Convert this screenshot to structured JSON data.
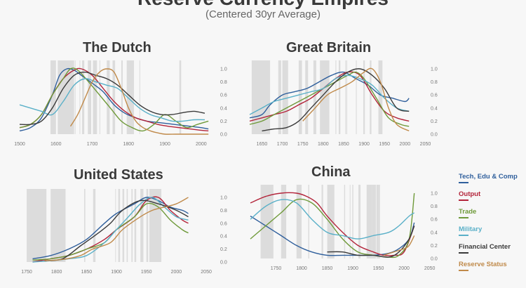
{
  "title": "Reserve Currency Empires",
  "subtitle": "(Centered 30yr Average)",
  "legend": [
    {
      "label": "Tech, Edu & Comp",
      "color": "#2f5f9c"
    },
    {
      "label": "Output",
      "color": "#b3243a"
    },
    {
      "label": "Trade",
      "color": "#6f9a3a"
    },
    {
      "label": "Military",
      "color": "#5ab0c8"
    },
    {
      "label": "Financial Center",
      "color": "#3a3a3a"
    },
    {
      "label": "Reserve Status",
      "color": "#c08a4a"
    }
  ],
  "chart_data": [
    {
      "type": "line",
      "title": "The Dutch",
      "xlim": [
        1500,
        2010
      ],
      "ylim": [
        0,
        1
      ],
      "x_ticks": [
        1500,
        1600,
        1700,
        1800,
        1900,
        2000
      ],
      "y_ticks": [
        0.0,
        0.2,
        0.4,
        0.6,
        0.8,
        1.0
      ],
      "grid": false,
      "war_bands": [
        [
          1585,
          1600
        ],
        [
          1605,
          1650
        ],
        [
          1652,
          1654
        ],
        [
          1665,
          1667
        ],
        [
          1672,
          1678
        ],
        [
          1688,
          1697
        ],
        [
          1702,
          1713
        ],
        [
          1720,
          1722
        ],
        [
          1740,
          1748
        ],
        [
          1756,
          1763
        ],
        [
          1780,
          1784
        ],
        [
          1795,
          1815
        ],
        [
          1830,
          1832
        ],
        [
          1940,
          1945
        ]
      ],
      "series": [
        {
          "legend": 0,
          "x": [
            1500,
            1530,
            1560,
            1590,
            1610,
            1630,
            1650,
            1670,
            1700,
            1730,
            1760,
            1790,
            1820,
            1850,
            1880,
            1910,
            1940,
            1970,
            2000,
            2020
          ],
          "y": [
            0.05,
            0.1,
            0.25,
            0.6,
            0.9,
            1.0,
            0.98,
            0.9,
            0.78,
            0.65,
            0.45,
            0.32,
            0.25,
            0.2,
            0.18,
            0.16,
            0.14,
            0.12,
            0.1,
            0.08
          ]
        },
        {
          "legend": 1,
          "x": [
            1500,
            1530,
            1560,
            1590,
            1620,
            1650,
            1670,
            1700,
            1730,
            1760,
            1790,
            1820,
            1850,
            1880,
            1910,
            1940,
            1970,
            2000,
            2020
          ],
          "y": [
            0.1,
            0.15,
            0.3,
            0.6,
            0.85,
            0.98,
            1.0,
            0.9,
            0.7,
            0.5,
            0.35,
            0.25,
            0.2,
            0.15,
            0.12,
            0.1,
            0.08,
            0.06,
            0.05
          ]
        },
        {
          "legend": 2,
          "x": [
            1500,
            1530,
            1560,
            1590,
            1620,
            1640,
            1660,
            1690,
            1720,
            1750,
            1780,
            1810,
            1840,
            1870,
            1900,
            1930,
            1960,
            1990,
            2020
          ],
          "y": [
            0.1,
            0.15,
            0.3,
            0.6,
            0.85,
            1.0,
            0.98,
            0.8,
            0.6,
            0.4,
            0.2,
            0.1,
            0.05,
            0.15,
            0.3,
            0.2,
            0.1,
            0.15,
            0.2
          ]
        },
        {
          "legend": 3,
          "x": [
            1500,
            1530,
            1560,
            1590,
            1620,
            1650,
            1680,
            1710,
            1740,
            1770,
            1800,
            1830,
            1860,
            1890,
            1920,
            1950,
            1980,
            2010
          ],
          "y": [
            0.45,
            0.4,
            0.35,
            0.3,
            0.5,
            0.75,
            0.85,
            0.8,
            0.75,
            0.7,
            0.55,
            0.4,
            0.3,
            0.25,
            0.2,
            0.2,
            0.22,
            0.22
          ]
        },
        {
          "legend": 4,
          "x": [
            1500,
            1530,
            1560,
            1590,
            1620,
            1650,
            1680,
            1710,
            1740,
            1770,
            1800,
            1830,
            1860,
            1890,
            1920,
            1950,
            1980,
            2010
          ],
          "y": [
            0.15,
            0.15,
            0.2,
            0.4,
            0.7,
            0.9,
            0.95,
            0.9,
            0.85,
            0.75,
            0.6,
            0.45,
            0.35,
            0.3,
            0.3,
            0.33,
            0.35,
            0.32
          ]
        },
        {
          "legend": 5,
          "x": [
            1640,
            1660,
            1680,
            1700,
            1720,
            1740,
            1760,
            1780,
            1800,
            1820,
            1840,
            1860,
            1880,
            1900,
            1930,
            1960,
            1990,
            2020
          ],
          "y": [
            0.12,
            0.3,
            0.55,
            0.8,
            0.95,
            1.0,
            0.95,
            0.7,
            0.4,
            0.2,
            0.1,
            0.05,
            0.02,
            0.0,
            0.0,
            0.0,
            0.0,
            0.0
          ]
        }
      ]
    },
    {
      "type": "line",
      "title": "Great Britain",
      "xlim": [
        1620,
        2020
      ],
      "ylim": [
        0,
        1
      ],
      "x_ticks": [
        1650,
        1700,
        1750,
        1800,
        1850,
        1900,
        1950,
        2000,
        2050
      ],
      "y_ticks": [
        0.0,
        0.2,
        0.4,
        0.6,
        0.8,
        1.0
      ],
      "grid": false,
      "war_bands": [
        [
          1625,
          1670
        ],
        [
          1690,
          1697
        ],
        [
          1700,
          1714
        ],
        [
          1740,
          1748
        ],
        [
          1756,
          1763
        ],
        [
          1776,
          1783
        ],
        [
          1792,
          1815
        ],
        [
          1830,
          1832
        ],
        [
          1838,
          1842
        ],
        [
          1854,
          1856
        ],
        [
          1857,
          1858
        ],
        [
          1880,
          1882
        ],
        [
          1898,
          1902
        ],
        [
          1914,
          1918
        ],
        [
          1935,
          1945
        ]
      ],
      "series": [
        {
          "legend": 0,
          "x": [
            1620,
            1650,
            1670,
            1700,
            1730,
            1760,
            1790,
            1820,
            1850,
            1880,
            1910,
            1940,
            1970,
            2000,
            2010
          ],
          "y": [
            0.25,
            0.3,
            0.45,
            0.6,
            0.65,
            0.7,
            0.8,
            0.9,
            0.95,
            0.85,
            0.75,
            0.6,
            0.55,
            0.5,
            0.55
          ]
        },
        {
          "legend": 1,
          "x": [
            1620,
            1650,
            1680,
            1710,
            1740,
            1770,
            1800,
            1830,
            1860,
            1890,
            1920,
            1950,
            1980,
            2010
          ],
          "y": [
            0.2,
            0.25,
            0.3,
            0.35,
            0.45,
            0.55,
            0.7,
            0.85,
            0.95,
            0.9,
            0.6,
            0.35,
            0.25,
            0.2
          ]
        },
        {
          "legend": 2,
          "x": [
            1620,
            1650,
            1680,
            1710,
            1740,
            1770,
            1800,
            1830,
            1860,
            1880,
            1900,
            1930,
            1960,
            1990,
            2010
          ],
          "y": [
            0.15,
            0.2,
            0.3,
            0.4,
            0.5,
            0.6,
            0.7,
            0.8,
            0.9,
            0.95,
            0.85,
            0.55,
            0.25,
            0.15,
            0.12
          ]
        },
        {
          "legend": 3,
          "x": [
            1620,
            1650,
            1680,
            1710,
            1740,
            1770,
            1800,
            1830,
            1860,
            1890,
            1920,
            1950,
            1980,
            2010
          ],
          "y": [
            0.3,
            0.4,
            0.5,
            0.55,
            0.6,
            0.65,
            0.7,
            0.85,
            0.9,
            0.85,
            0.75,
            0.55,
            0.4,
            0.35
          ]
        },
        {
          "legend": 4,
          "x": [
            1650,
            1680,
            1710,
            1740,
            1770,
            1800,
            1830,
            1860,
            1890,
            1920,
            1950,
            1980,
            2010
          ],
          "y": [
            0.05,
            0.08,
            0.1,
            0.2,
            0.4,
            0.6,
            0.8,
            0.95,
            1.0,
            0.9,
            0.7,
            0.4,
            0.35
          ]
        },
        {
          "legend": 5,
          "x": [
            1750,
            1780,
            1810,
            1840,
            1870,
            1900,
            1920,
            1940,
            1960,
            1980,
            2010
          ],
          "y": [
            0.2,
            0.4,
            0.6,
            0.7,
            0.8,
            0.95,
            1.0,
            0.8,
            0.4,
            0.15,
            0.05
          ]
        }
      ]
    },
    {
      "type": "line",
      "title": "United States",
      "xlim": [
        1750,
        2030
      ],
      "ylim": [
        0,
        1
      ],
      "x_ticks": [
        1750,
        1800,
        1850,
        1900,
        1950,
        2000,
        2050
      ],
      "y_ticks": [
        0.0,
        0.2,
        0.4,
        0.6,
        0.8,
        1.0
      ],
      "grid": false,
      "war_bands": [
        [
          1750,
          1783
        ],
        [
          1790,
          1815
        ],
        [
          1846,
          1848
        ],
        [
          1861,
          1865
        ],
        [
          1898,
          1899
        ],
        [
          1903,
          1906
        ],
        [
          1910,
          1913
        ],
        [
          1917,
          1919
        ],
        [
          1925,
          1927
        ],
        [
          1930,
          1933
        ],
        [
          1940,
          1945
        ],
        [
          1950,
          1953
        ],
        [
          1955,
          1975
        ]
      ],
      "series": [
        {
          "legend": 0,
          "x": [
            1760,
            1790,
            1820,
            1850,
            1880,
            1900,
            1930,
            1950,
            1970,
            1990,
            2010,
            2020
          ],
          "y": [
            0.05,
            0.1,
            0.2,
            0.35,
            0.6,
            0.75,
            0.9,
            1.0,
            0.95,
            0.85,
            0.8,
            0.75
          ]
        },
        {
          "legend": 1,
          "x": [
            1760,
            1790,
            1820,
            1850,
            1880,
            1900,
            1930,
            1950,
            1970,
            1990,
            2010,
            2020
          ],
          "y": [
            0.0,
            0.05,
            0.1,
            0.2,
            0.35,
            0.5,
            0.7,
            0.95,
            1.0,
            0.8,
            0.65,
            0.6
          ]
        },
        {
          "legend": 2,
          "x": [
            1760,
            1790,
            1820,
            1850,
            1880,
            1900,
            1930,
            1950,
            1970,
            1990,
            2010,
            2020
          ],
          "y": [
            0.03,
            0.05,
            0.1,
            0.2,
            0.3,
            0.5,
            0.7,
            0.9,
            0.85,
            0.65,
            0.5,
            0.45
          ]
        },
        {
          "legend": 3,
          "x": [
            1760,
            1790,
            1820,
            1850,
            1880,
            1900,
            1920,
            1940,
            1960,
            1980,
            2000,
            2020
          ],
          "y": [
            0.0,
            0.02,
            0.05,
            0.1,
            0.3,
            0.5,
            0.7,
            0.9,
            1.0,
            0.85,
            0.7,
            0.65
          ]
        },
        {
          "legend": 4,
          "x": [
            1780,
            1810,
            1840,
            1870,
            1890,
            1910,
            1940,
            1970,
            2000,
            2020
          ],
          "y": [
            0.02,
            0.05,
            0.25,
            0.45,
            0.6,
            0.8,
            0.95,
            0.9,
            0.8,
            0.7
          ]
        },
        {
          "legend": 5,
          "x": [
            1780,
            1810,
            1840,
            1860,
            1890,
            1910,
            1940,
            1960,
            1980,
            2000,
            2020
          ],
          "y": [
            0.02,
            0.04,
            0.1,
            0.2,
            0.3,
            0.5,
            0.7,
            0.8,
            0.85,
            0.9,
            1.0
          ]
        }
      ]
    },
    {
      "type": "line",
      "title": "China",
      "xlim": [
        1700,
        2030
      ],
      "ylim": [
        0,
        1
      ],
      "x_ticks": [
        1750,
        1800,
        1850,
        1900,
        1950,
        2000,
        2050
      ],
      "y_ticks": [
        0.0,
        0.2,
        0.4,
        0.6,
        0.8,
        1.0
      ],
      "grid": false,
      "war_bands": [
        [
          1720,
          1745
        ],
        [
          1760,
          1770
        ],
        [
          1790,
          1800
        ],
        [
          1813,
          1815
        ],
        [
          1839,
          1842
        ],
        [
          1850,
          1864
        ],
        [
          1883,
          1885
        ],
        [
          1894,
          1895
        ],
        [
          1899,
          1901
        ],
        [
          1911,
          1915
        ],
        [
          1927,
          1937
        ],
        [
          1937,
          1945
        ],
        [
          1946,
          1950
        ],
        [
          1950,
          1953
        ]
      ],
      "series": [
        {
          "legend": 0,
          "x": [
            1700,
            1730,
            1760,
            1790,
            1820,
            1850,
            1880,
            1910,
            1940,
            1970,
            1990,
            2010,
            2020
          ],
          "y": [
            0.65,
            0.5,
            0.35,
            0.2,
            0.1,
            0.05,
            0.05,
            0.05,
            0.05,
            0.08,
            0.15,
            0.3,
            0.55
          ]
        },
        {
          "legend": 1,
          "x": [
            1700,
            1730,
            1760,
            1790,
            1810,
            1830,
            1850,
            1880,
            1910,
            1940,
            1960,
            1980,
            2000,
            2020
          ],
          "y": [
            0.85,
            0.95,
            1.0,
            1.0,
            0.95,
            0.85,
            0.65,
            0.4,
            0.2,
            0.1,
            0.05,
            0.05,
            0.1,
            0.5
          ]
        },
        {
          "legend": 2,
          "x": [
            1700,
            1730,
            1760,
            1790,
            1820,
            1850,
            1880,
            1910,
            1940,
            1970,
            1990,
            2010,
            2020
          ],
          "y": [
            0.3,
            0.5,
            0.7,
            0.9,
            0.85,
            0.6,
            0.3,
            0.1,
            0.05,
            0.02,
            0.05,
            0.3,
            1.0
          ]
        },
        {
          "legend": 3,
          "x": [
            1700,
            1730,
            1760,
            1790,
            1820,
            1850,
            1880,
            1910,
            1940,
            1970,
            1990,
            2010,
            2020
          ],
          "y": [
            0.6,
            0.8,
            0.9,
            0.85,
            0.6,
            0.4,
            0.35,
            0.3,
            0.35,
            0.4,
            0.5,
            0.65,
            0.7
          ]
        },
        {
          "legend": 4,
          "x": [
            1850,
            1880,
            1910,
            1940,
            1970,
            1990,
            2010,
            2020
          ],
          "y": [
            0.1,
            0.1,
            0.05,
            0.05,
            0.02,
            0.1,
            0.3,
            0.5
          ]
        },
        {
          "legend": 5,
          "x": [
            1960,
            1980,
            2000,
            2010,
            2020
          ],
          "y": [
            0.05,
            0.1,
            0.15,
            0.2,
            0.35
          ]
        }
      ]
    }
  ]
}
